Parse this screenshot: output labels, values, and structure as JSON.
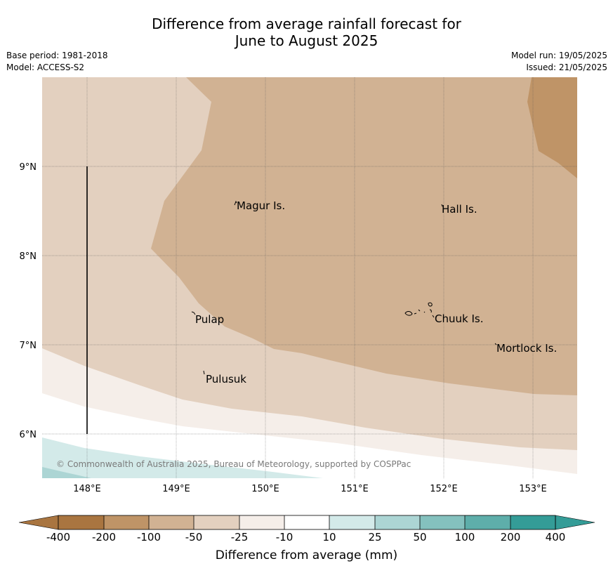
{
  "title": {
    "line1": "Difference from average rainfall forecast for",
    "line2": "June to August 2025"
  },
  "meta": {
    "base_period": "Base period: 1981-2018",
    "model": "Model: ACCESS-S2",
    "model_run": "Model run: 19/05/2025",
    "issued": "Issued: 21/05/2025"
  },
  "map": {
    "lat_labels": [
      "9°N",
      "8°N",
      "7°N",
      "6°N"
    ],
    "lon_labels": [
      "148°E",
      "149°E",
      "150°E",
      "151°E",
      "152°E",
      "153°E"
    ],
    "places": [
      "Magur Is.",
      "Hall Is.",
      "Pulap",
      "Chuuk Is.",
      "Mortlock Is.",
      "Pulusuk"
    ],
    "copyright": "© Commonwealth of Australia 2025, Bureau of Meteorology, supported by COSPPac",
    "colors": {
      "m400": "#a97540",
      "m200": "#bf9467",
      "m100": "#d1b293",
      "m50": "#e3d0bf",
      "m25": "#f5eee9",
      "neutral": "#ffffff",
      "p10": "#d3eae9",
      "p25": "#acd5d4",
      "p50": "#84c1be",
      "p100": "#5eaeaa",
      "p200": "#349c97"
    }
  },
  "colorbar": {
    "ticks": [
      "-400",
      "-200",
      "-100",
      "-50",
      "-25",
      "-10",
      "10",
      "25",
      "50",
      "100",
      "200",
      "400"
    ],
    "title": "Difference from average (mm)"
  }
}
